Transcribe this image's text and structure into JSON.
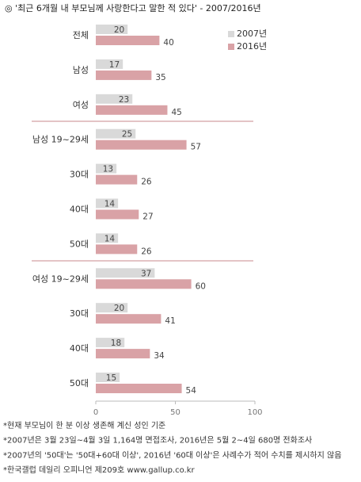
{
  "chart_data": {
    "type": "bar",
    "orientation": "horizontal",
    "title": "◎ '최근 6개월 내 부모님께 사랑한다고 말한 적 있다' - 2007/2016년",
    "categories": [
      "전체",
      "남성",
      "여성",
      "남성 19~29세",
      "30대",
      "40대",
      "50대",
      "여성 19~29세",
      "30대",
      "40대",
      "50대"
    ],
    "series": [
      {
        "name": "2007년",
        "color": "#d9d9d9",
        "values": [
          20,
          17,
          23,
          25,
          13,
          14,
          14,
          37,
          20,
          18,
          15
        ]
      },
      {
        "name": "2016년",
        "color": "#d9a2a6",
        "values": [
          40,
          35,
          45,
          57,
          26,
          27,
          26,
          60,
          41,
          34,
          54
        ]
      }
    ],
    "xlim": [
      0,
      100
    ],
    "xticks": [
      0,
      50,
      100
    ],
    "legend": "top-right",
    "notes": [
      "*현재 부모님이 한 분 이상 생존해 계신 성인 기준",
      "*2007년은 3월 23일~4월 3일 1,164명 면접조사, 2016년은 5월 2~4일 680명 전화조사",
      "*2007년의 '50대'는 '50대+60대 이상', 2016년 '60대 이상'은 사례수가 적어 수치를 제시하지 않음",
      "*한국갤럽 데일리 오피니언 제209호 www.gallup.co.kr"
    ]
  }
}
